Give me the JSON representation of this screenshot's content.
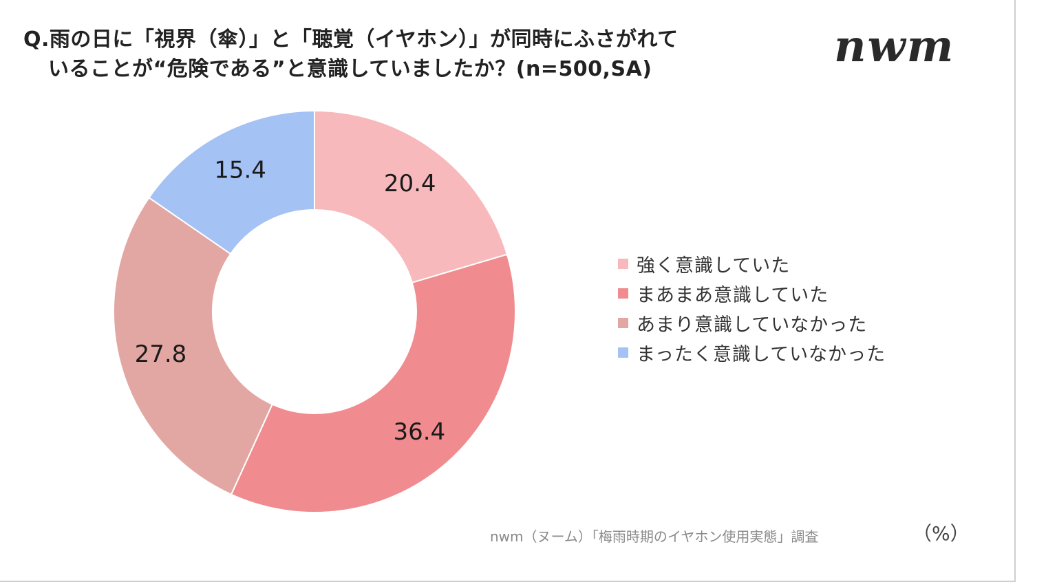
{
  "title": {
    "line1": "Q.雨の日に「視界（傘）」と「聴覚（イヤホン）」が同時にふさがれて",
    "line2": "いることが“危険である”と意識していましたか？(n=500,SA)"
  },
  "logo": "nwm",
  "source": "nwm（ヌーム）「梅雨時期のイヤホン使用実態」調査",
  "unit_label": "（%）",
  "chart_data": {
    "type": "pie",
    "subtype": "donut",
    "title": "Q.雨の日に「視界（傘）」と「聴覚（イヤホン）」が同時にふさがれていることが“危険である”と意識していましたか？(n=500,SA)",
    "unit": "%",
    "legend_position": "right",
    "categories": [
      "強く意識していた",
      "まあまあ意識していた",
      "あまり意識していなかった",
      "まったく意識していなかった"
    ],
    "values": [
      20.4,
      36.4,
      27.8,
      15.4
    ],
    "value_labels": [
      "20.4",
      "36.4",
      "27.8",
      "15.4"
    ],
    "colors": [
      "#f7b9bb",
      "#f08c8f",
      "#e3a7a3",
      "#a4c2f4"
    ]
  }
}
